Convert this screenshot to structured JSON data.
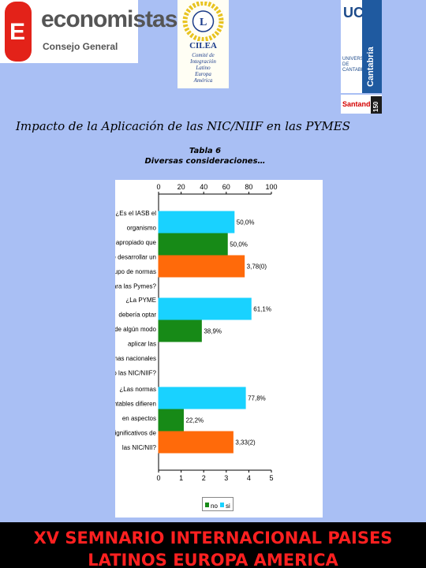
{
  "logos": {
    "economistas": {
      "name": "economistas",
      "sub": "Consejo General"
    },
    "cilea": {
      "name": "CILEA",
      "sub": [
        "Comité de",
        "Integración",
        "Latino",
        "Europa",
        "América"
      ]
    },
    "uc": {
      "letters": "UC",
      "side": "Cantabria",
      "vertical": "UNIVERSIDAD DE CANTABRIA"
    },
    "santander": {
      "name": "Santander",
      "anniv": "150"
    }
  },
  "slide_title": "Impacto de la Aplicación de las NIC/NIIF en las PYMES",
  "table_title": [
    "Tabla 6",
    "Diversas consideraciones…"
  ],
  "chart_data": {
    "type": "bar",
    "orientation": "horizontal",
    "categories": [
      [
        "¿Es el IASB el",
        "organismo",
        "apropiado que",
        "debe desarrollar un",
        "grupo de normas",
        "para las Pymes?"
      ],
      [
        "¿La PYME",
        "debería optar",
        "de algún modo",
        "aplicar las",
        "normas nacionales",
        "o las NIC/NIIF?"
      ],
      [
        "¿Las normas",
        "contables difieren",
        "en aspectos",
        "significativos de",
        "las NIC/NII?"
      ]
    ],
    "series": [
      {
        "name": "",
        "color": "#19d2ff",
        "values": [
          3.35,
          4.1,
          3.85
        ],
        "labels": [
          "50,0%",
          "61,1%",
          "77,8%"
        ]
      },
      {
        "name": "",
        "color": "#178a17",
        "values": [
          3.05,
          1.9,
          1.1
        ],
        "labels": [
          "50,0%",
          "38,9%",
          "22,2%"
        ]
      },
      {
        "name": "",
        "color": "#ff6a0a",
        "values": [
          3.8,
          null,
          3.3
        ],
        "labels": [
          "3,78(0)",
          "",
          "3,33(2)"
        ]
      }
    ],
    "top_axis": {
      "ticks": [
        "0",
        "20",
        "40",
        "60",
        "80",
        "100"
      ],
      "range": [
        0,
        100
      ]
    },
    "bottom_axis": {
      "ticks": [
        "0",
        "1",
        "2",
        "3",
        "4",
        "5"
      ],
      "range": [
        0,
        5
      ]
    },
    "legend_entries": [
      "no",
      "si"
    ],
    "legend_colors": [
      "#178a17",
      "#19d2ff"
    ],
    "legend_position": "bottom"
  },
  "footer": {
    "line1": "XV SEMNARIO INTERNACIONAL PAISES",
    "line2": "LATINOS EUROPA AMERICA"
  }
}
